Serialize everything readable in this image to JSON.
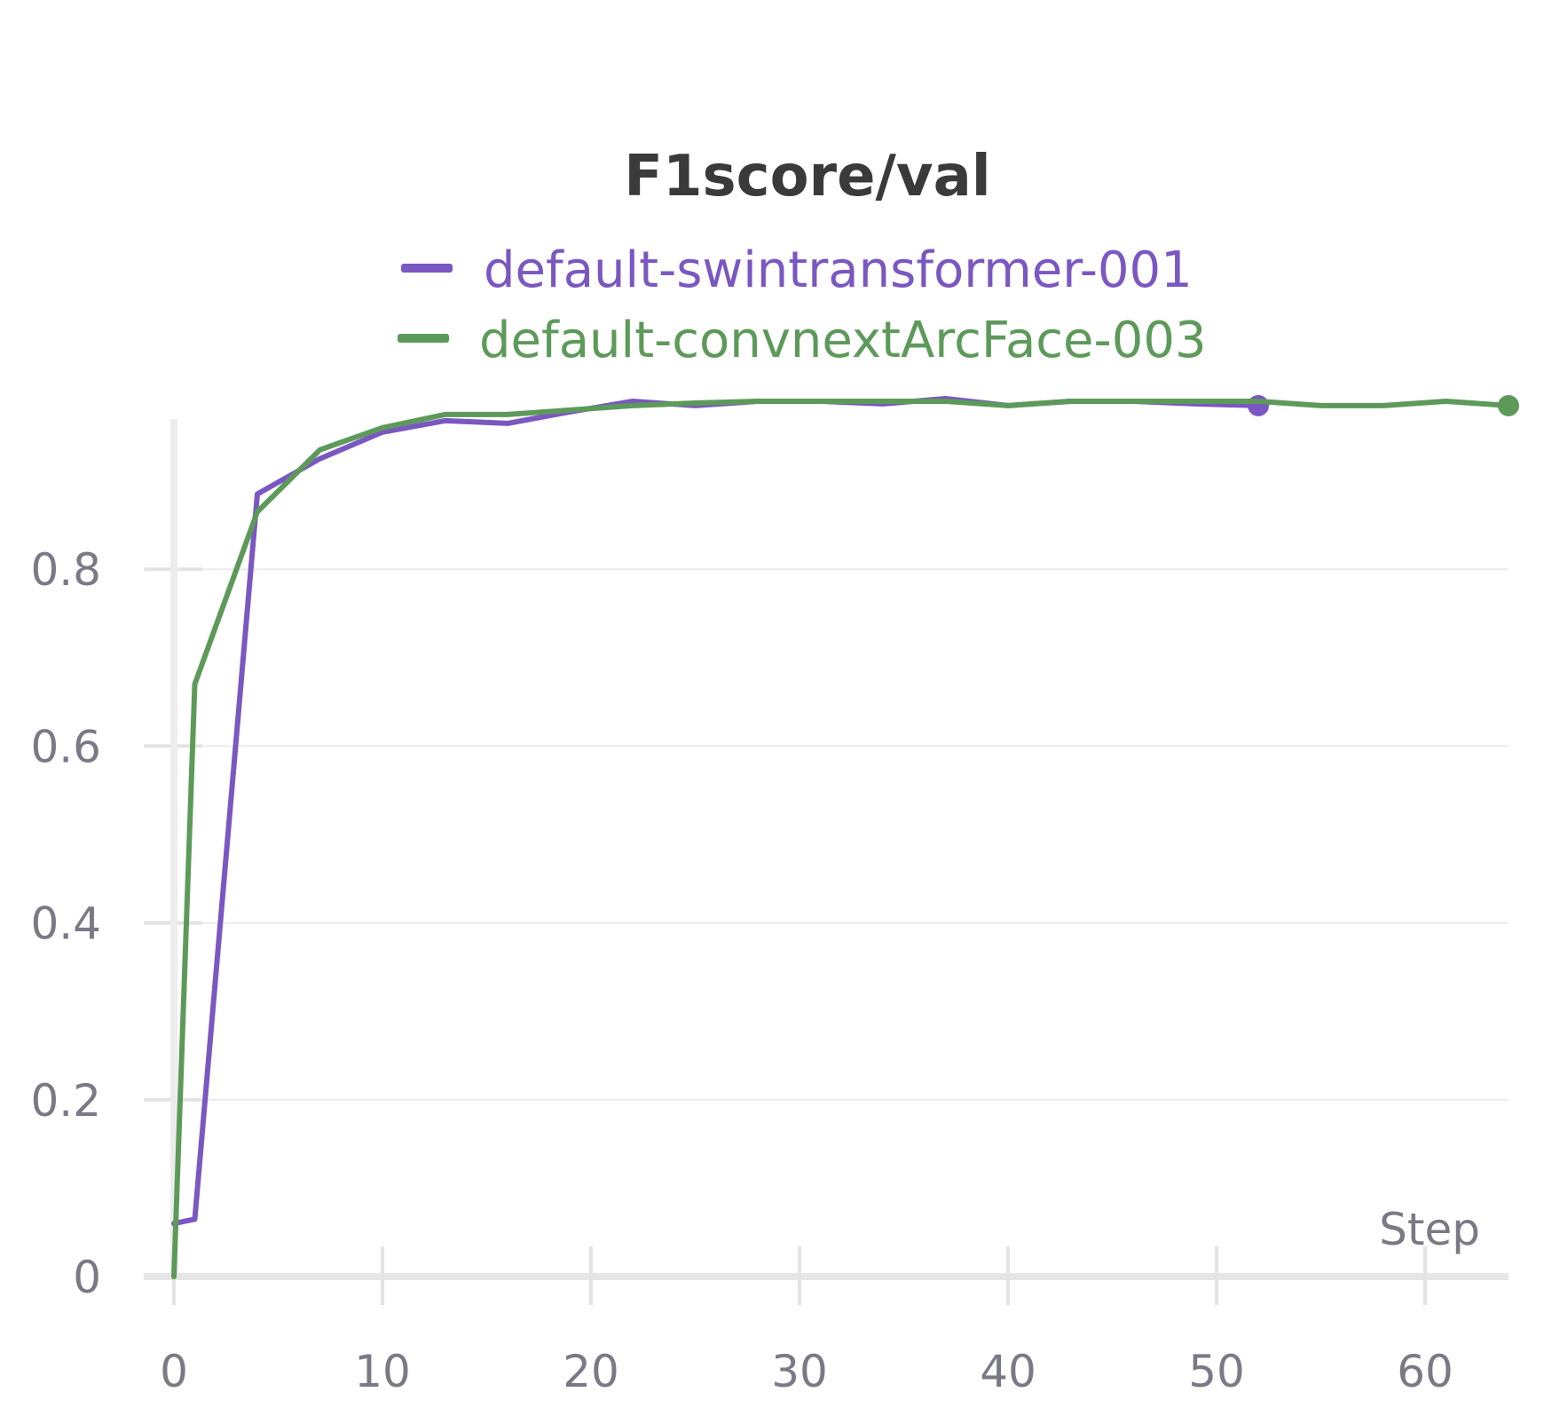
{
  "chart_data": {
    "type": "line",
    "title": "F1score/val",
    "xlabel": "Step",
    "ylabel": "",
    "xlim": [
      0,
      64
    ],
    "ylim": [
      0,
      1
    ],
    "x_ticks": [
      0,
      10,
      20,
      30,
      40,
      50,
      60
    ],
    "y_ticks": [
      0,
      0.2,
      0.4,
      0.6,
      0.8
    ],
    "y_tick_labels": [
      "0",
      "0.2",
      "0.4",
      "0.6",
      "0.8"
    ],
    "grid": true,
    "legend_position": "top-center",
    "series": [
      {
        "name": "default-swintransformer-001",
        "color": "#7a57c1",
        "x": [
          0,
          1,
          4,
          7,
          10,
          13,
          16,
          19,
          22,
          25,
          28,
          31,
          34,
          37,
          40,
          43,
          46,
          49,
          52
        ],
        "y": [
          0.06,
          0.065,
          0.885,
          0.925,
          0.955,
          0.968,
          0.965,
          0.978,
          0.99,
          0.985,
          0.99,
          0.99,
          0.987,
          0.993,
          0.985,
          0.99,
          0.99,
          0.987,
          0.985
        ],
        "end_marker": true
      },
      {
        "name": "default-convnextArcFace-003",
        "color": "#5d9a5a",
        "x": [
          0,
          1,
          4,
          7,
          10,
          13,
          16,
          19,
          22,
          25,
          28,
          31,
          34,
          37,
          40,
          43,
          46,
          49,
          52,
          55,
          58,
          61,
          64
        ],
        "y": [
          0,
          0.67,
          0.865,
          0.935,
          0.96,
          0.975,
          0.975,
          0.98,
          0.985,
          0.988,
          0.99,
          0.99,
          0.99,
          0.99,
          0.985,
          0.99,
          0.99,
          0.99,
          0.99,
          0.985,
          0.985,
          0.99,
          0.985
        ],
        "end_marker": true
      }
    ]
  }
}
